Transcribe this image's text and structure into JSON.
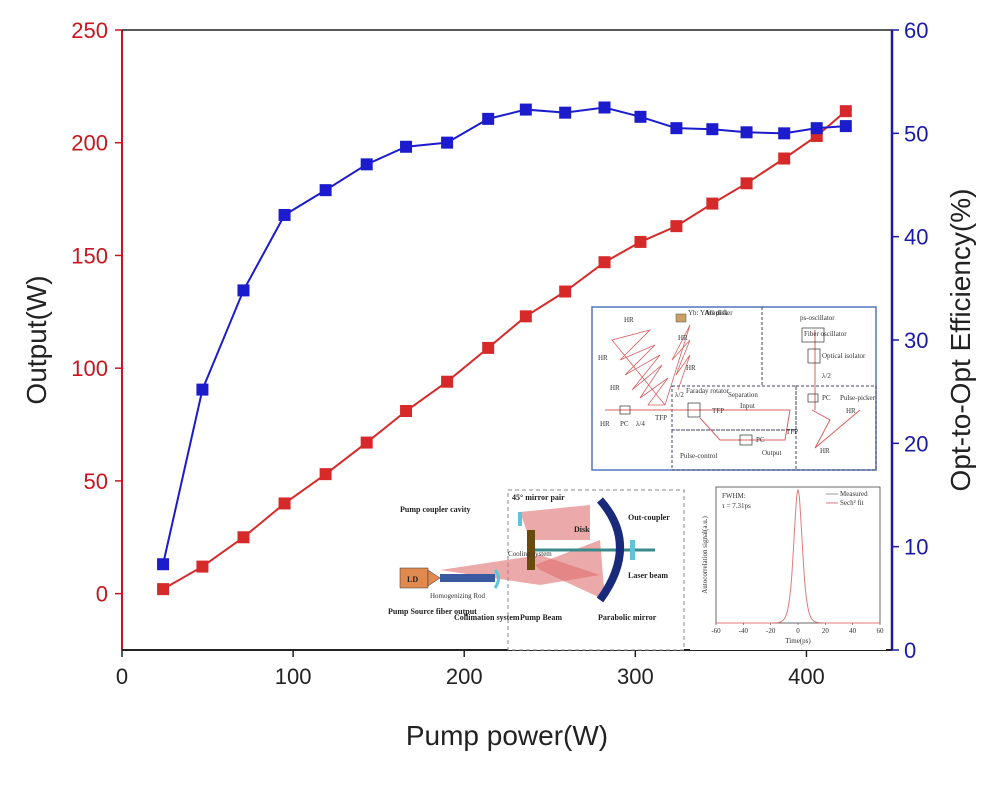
{
  "chart_data": {
    "type": "line",
    "xlabel": "Pump power(W)",
    "ylabel_left": "Output(W)",
    "ylabel_right": "Opt-to-Opt Efficiency(%)",
    "xlim": [
      0,
      450
    ],
    "ylim_left": [
      -25,
      250
    ],
    "ylim_right": [
      0,
      60
    ],
    "xticks": [
      "0",
      "100",
      "200",
      "300",
      "400"
    ],
    "yticks_left": [
      "0",
      "50",
      "100",
      "150",
      "200",
      "250"
    ],
    "yticks_right": [
      "0",
      "10",
      "20",
      "30",
      "40",
      "50",
      "60"
    ],
    "grid": false,
    "series": [
      {
        "axis": "left",
        "color": "#d62a2a",
        "marker": "square",
        "x": [
          24,
          47,
          71,
          95,
          119,
          143,
          166,
          190,
          214,
          236,
          259,
          282,
          303,
          324,
          345,
          365,
          387,
          406,
          423
        ],
        "values": [
          2,
          12,
          25,
          40,
          53,
          67,
          81,
          94,
          109,
          123,
          134,
          147,
          156,
          163,
          173,
          182,
          193,
          203,
          214
        ]
      },
      {
        "axis": "right",
        "color": "#1c1ccc",
        "marker": "square",
        "x": [
          24,
          47,
          71,
          95,
          119,
          143,
          166,
          190,
          214,
          236,
          259,
          282,
          303,
          324,
          345,
          365,
          387,
          406,
          423
        ],
        "values": [
          8.3,
          25.2,
          34.8,
          42.1,
          44.5,
          47.0,
          48.7,
          49.1,
          51.4,
          52.3,
          52.0,
          52.5,
          51.6,
          50.5,
          50.4,
          50.1,
          50.0,
          50.5,
          50.7
        ]
      }
    ]
  },
  "insets": {
    "amplifier": {
      "labels": {
        "amplifier": "Amplifier",
        "yb_yag_disk": "Yb: YAG disk",
        "ps_oscillator": "ps-oscillator",
        "fiber_oscillator": "Fiber oscillator",
        "optical_isolator": "Optical isolator",
        "lambda_2": "λ/2",
        "lambda_4": "λ/4",
        "pc": "PC",
        "hr": "HR",
        "tfp": "TFP",
        "faraday_rotator": "Faraday rotator",
        "separation": "Separation",
        "input": "Input",
        "output": "Output",
        "pulse_control": "Pulse-control",
        "pulse_picker": "Pulse-picker"
      }
    },
    "disk_module": {
      "labels": {
        "pump_coupler_cavity": "Pump coupler cavity",
        "mirror_pair": "45° mirror pair",
        "disk": "Disk",
        "out_coupler": "Out-coupler",
        "cooling_system": "Cooling system",
        "laser_beam": "Laser beam",
        "ld": "LD",
        "homogenizing_rod": "Homogenizing Rod",
        "pump_source": "Pump Source fiber output",
        "collimation_system": "Collimation system",
        "pump_beam": "Pump Beam",
        "parabolic_mirror": "Parabolic mirror"
      }
    },
    "autocorrelation": {
      "fwhm_title": "FWHM:",
      "fwhm_value": "τ = 7.31ps",
      "legend_measured": "Measured",
      "legend_fit": "Sech² fit",
      "xlabel": "Time(ps)",
      "ylabel": "Autocorrelation signal(a.u.)",
      "xticks": [
        "-60",
        "-40",
        "-20",
        "0",
        "20",
        "40",
        "60"
      ],
      "fwhm_ps": 7.31
    }
  }
}
